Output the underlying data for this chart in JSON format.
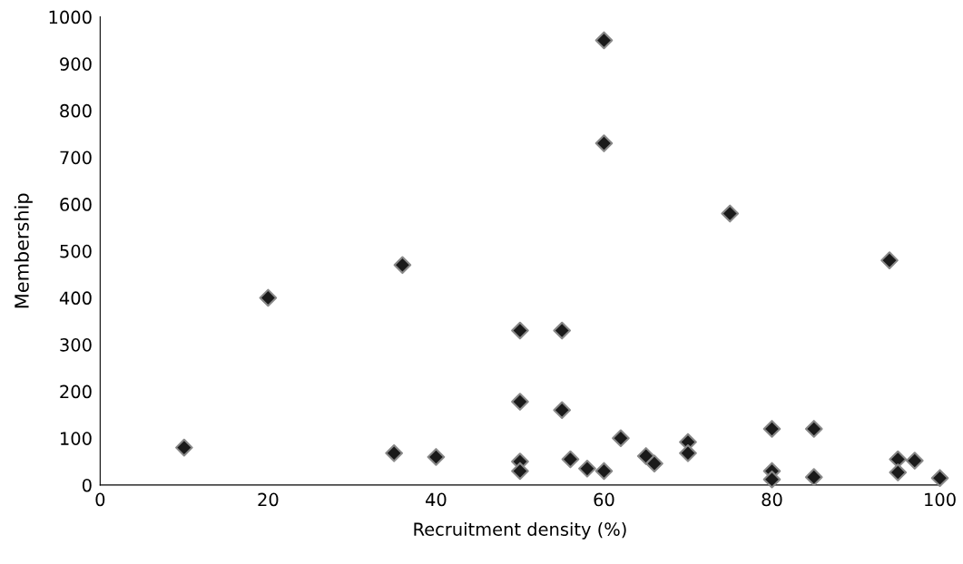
{
  "chart_data": {
    "type": "scatter",
    "xlabel": "Recruitment density (%)",
    "ylabel": "Membership",
    "x": [
      10,
      20,
      35,
      36,
      40,
      50,
      50,
      50,
      50,
      55,
      55,
      56,
      58,
      60,
      60,
      60,
      62,
      65,
      66,
      70,
      70,
      75,
      80,
      80,
      80,
      85,
      85,
      94,
      95,
      95,
      97,
      100
    ],
    "series": [
      {
        "color": "#1a1a1a",
        "values": [
          80,
          400,
          68,
          470,
          60,
          330,
          178,
          50,
          30,
          330,
          160,
          55,
          35,
          950,
          730,
          30,
          100,
          62,
          46,
          92,
          68,
          580,
          120,
          30,
          12,
          120,
          17,
          480,
          55,
          27,
          52,
          15
        ]
      }
    ],
    "xlim": [
      0,
      100
    ],
    "xticks": [
      0,
      20,
      40,
      60,
      80,
      100
    ],
    "ylim": [
      0,
      1000
    ],
    "yticks": [
      0,
      100,
      200,
      300,
      400,
      500,
      600,
      700,
      800,
      900,
      1000
    ],
    "grid": false,
    "legend": false,
    "marker": "diamond"
  }
}
